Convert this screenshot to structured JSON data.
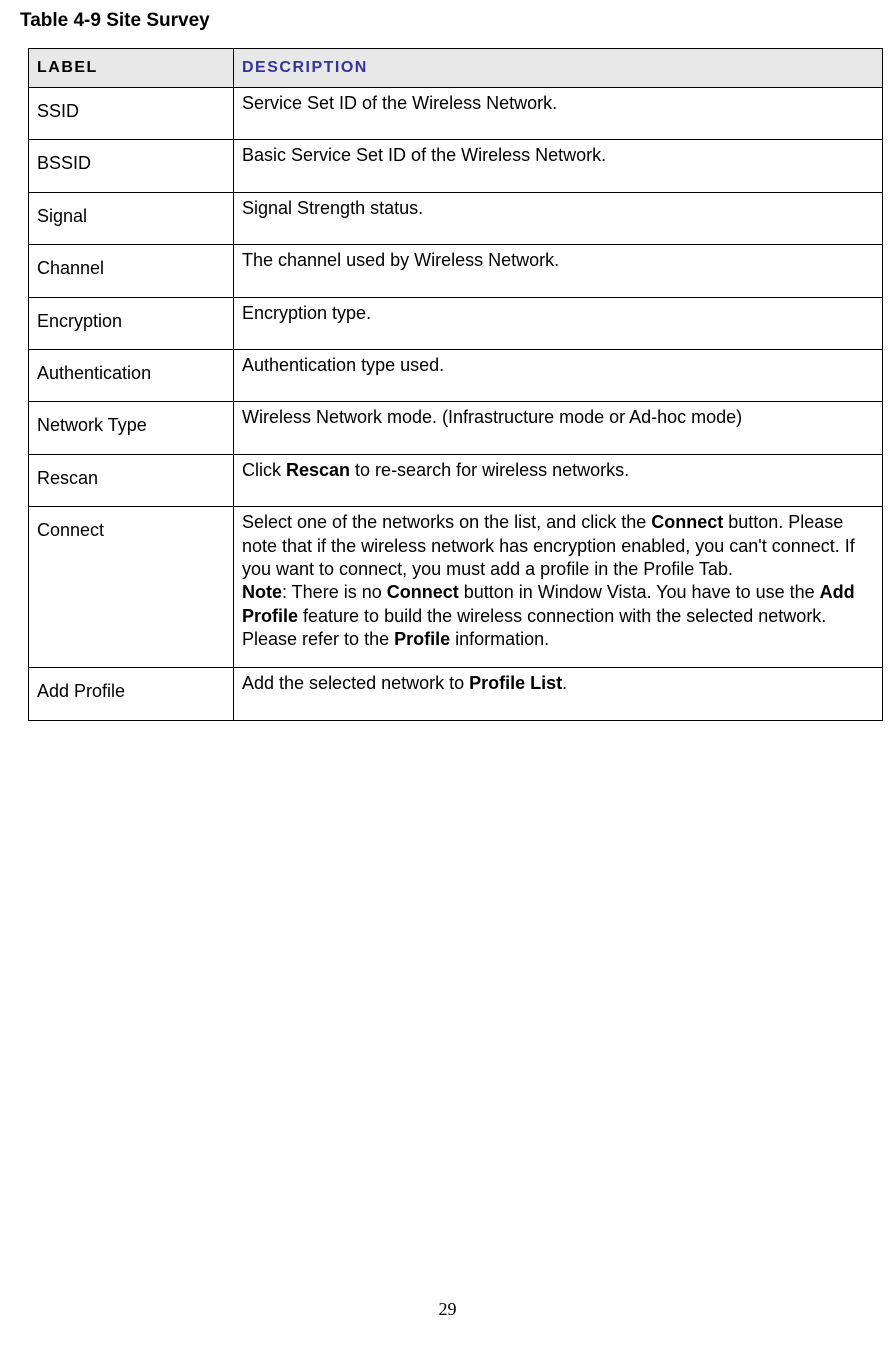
{
  "title": "Table 4-9 Site Survey",
  "header": {
    "label": "LABEL",
    "description": "DESCRIPTION"
  },
  "rows": {
    "ssid": {
      "label": "SSID",
      "desc": "Service Set ID of the Wireless Network."
    },
    "bssid": {
      "label": "BSSID",
      "desc": "Basic Service Set ID of the Wireless Network."
    },
    "signal": {
      "label": "Signal",
      "desc": "Signal Strength status."
    },
    "channel": {
      "label": "Channel",
      "desc": "The channel used by Wireless Network."
    },
    "encryption": {
      "label": "Encryption",
      "desc": "Encryption type."
    },
    "authentication": {
      "label": "Authentication",
      "desc": "Authentication type used."
    },
    "networkType": {
      "label": "Network Type",
      "desc": "Wireless Network mode. (Infrastructure mode or Ad-hoc mode)"
    },
    "rescan": {
      "label": "Rescan",
      "p1a": "Click ",
      "p1b": "Rescan",
      "p1c": " to re-search for wireless networks."
    },
    "connect": {
      "label": "Connect",
      "p1a": "Select one of the networks on the list, and click the ",
      "p1b": "Connect",
      "p1c": " button. Please note that if the wireless network has encryption enabled, you can't connect. If you want to connect, you must add a profile in the Profile Tab.",
      "p2a": "Note",
      "p2b": ": There is no ",
      "p2c": "Connect",
      "p2d": " button in Window Vista. You have to use the ",
      "p2e": "Add Profile",
      "p2f": " feature to build the wireless connection with the selected network. Please refer to the ",
      "p2g": "Profile",
      "p2h": " information."
    },
    "addProfile": {
      "label": "Add Profile",
      "p1a": "Add the selected network to ",
      "p1b": "Profile List",
      "p1c": "."
    }
  },
  "pageNumber": "29",
  "colors": {
    "headerBg": "#e8e8e8",
    "descHeaderText": "#34349b",
    "border": "#000000",
    "bodyBg": "#ffffff"
  }
}
